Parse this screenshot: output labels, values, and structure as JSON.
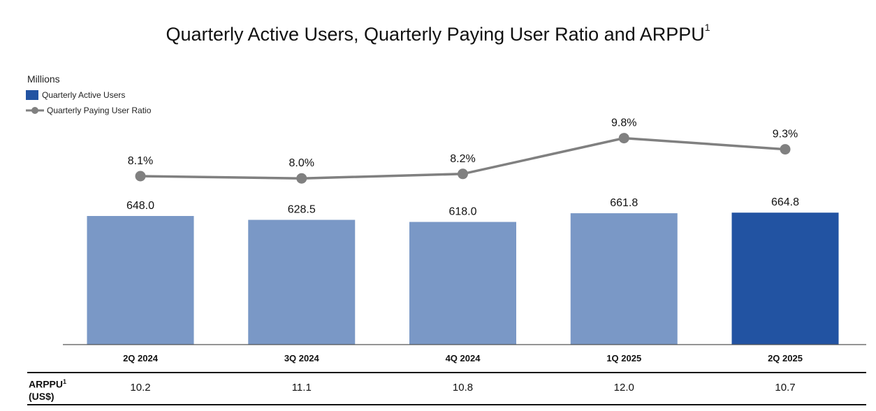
{
  "title": "Quarterly Active Users, Quarterly Paying User Ratio and ARPPU",
  "title_superscript": "1",
  "units_label": "Millions",
  "legend": {
    "bars_label": "Quarterly Active Users",
    "line_label": "Quarterly Paying User Ratio"
  },
  "colors": {
    "bar": "#7a98c6",
    "bar_highlight": "#2253a2",
    "line": "#808080",
    "axis": "#555555"
  },
  "chart_data": {
    "type": "bar",
    "categories": [
      "2Q 2024",
      "3Q 2024",
      "4Q 2024",
      "1Q 2025",
      "2Q 2025"
    ],
    "series": [
      {
        "name": "Quarterly Active Users",
        "type": "bar",
        "values": [
          648.0,
          628.5,
          618.0,
          661.8,
          664.8
        ],
        "labels": [
          "648.0",
          "628.5",
          "618.0",
          "661.8",
          "664.8"
        ],
        "highlight_index": 4
      },
      {
        "name": "Quarterly Paying User Ratio",
        "type": "line",
        "values": [
          8.1,
          8.0,
          8.2,
          9.8,
          9.3
        ],
        "labels": [
          "8.1%",
          "8.0%",
          "8.2%",
          "9.8%",
          "9.3%"
        ]
      }
    ],
    "ylabel": "Millions",
    "grid": false,
    "legend_position": "top-left"
  },
  "arppu": {
    "label": "ARPPU",
    "superscript": "1",
    "unit": "(US$)",
    "values": [
      "10.2",
      "11.1",
      "10.8",
      "12.0",
      "10.7"
    ]
  }
}
